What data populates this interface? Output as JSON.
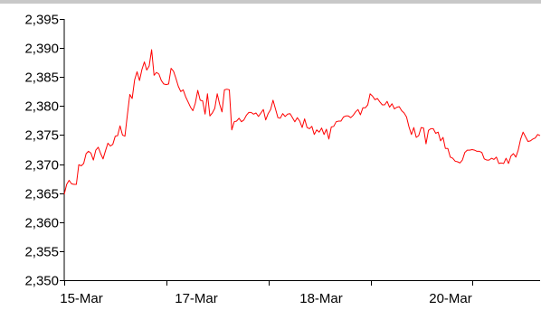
{
  "chart_data": {
    "type": "line",
    "title": "",
    "xlabel": "",
    "ylabel": "",
    "ylim": [
      2350,
      2395
    ],
    "yticks": [
      "2,350",
      "2,355",
      "2,360",
      "2,365",
      "2,370",
      "2,375",
      "2,380",
      "2,385",
      "2,390",
      "2,395"
    ],
    "xticks": [
      "15-Mar",
      "17-Mar",
      "18-Mar",
      "20-Mar"
    ],
    "grid": false,
    "legend": "none",
    "colors": {
      "series": "#ff0000",
      "axis": "#000000",
      "top_rule": "#c8c8c8"
    },
    "series": [
      {
        "values": [
          2364.8,
          2366.5,
          2367.2,
          2366.6,
          2366.5,
          2366.5,
          2369.9,
          2369.7,
          2370.1,
          2371.8,
          2372.2,
          2371.9,
          2370.7,
          2372.4,
          2372.9,
          2371.8,
          2370.9,
          2372.3,
          2373.6,
          2373.1,
          2373.4,
          2374.8,
          2374.9,
          2376.6,
          2375.0,
          2374.8,
          2378.5,
          2382.0,
          2381.3,
          2384.5,
          2385.9,
          2384.4,
          2386.3,
          2387.6,
          2386.2,
          2386.9,
          2389.7,
          2385.3,
          2385.8,
          2385.5,
          2384.4,
          2383.8,
          2383.7,
          2383.8,
          2386.5,
          2386.0,
          2384.8,
          2383.4,
          2382.5,
          2382.8,
          2381.6,
          2380.7,
          2379.8,
          2379.2,
          2380.5,
          2382.7,
          2381.0,
          2380.9,
          2378.6,
          2382.1,
          2378.3,
          2378.8,
          2379.6,
          2382.1,
          2380.3,
          2379.0,
          2382.8,
          2382.9,
          2382.8,
          2375.9,
          2377.3,
          2377.4,
          2377.9,
          2377.3,
          2377.6,
          2378.4,
          2378.9,
          2378.9,
          2378.6,
          2378.8,
          2378.2,
          2378.8,
          2379.4,
          2377.6,
          2378.7,
          2379.4,
          2381.0,
          2379.5,
          2378.0,
          2377.9,
          2378.7,
          2378.2,
          2378.6,
          2378.7,
          2378.0,
          2377.3,
          2378.0,
          2377.4,
          2376.3,
          2377.8,
          2376.3,
          2376.1,
          2376.5,
          2375.1,
          2375.9,
          2375.5,
          2376.2,
          2375.1,
          2376.0,
          2374.3,
          2376.4,
          2376.5,
          2377.3,
          2377.4,
          2377.4,
          2378.1,
          2378.3,
          2378.3,
          2378.0,
          2378.4,
          2379.0,
          2379.4,
          2378.5,
          2379.7,
          2379.7,
          2380.2,
          2382.1,
          2381.7,
          2381.1,
          2381.3,
          2380.7,
          2380.2,
          2380.2,
          2380.8,
          2379.8,
          2380.4,
          2379.5,
          2379.8,
          2379.9,
          2379.2,
          2378.8,
          2378.1,
          2376.4,
          2375.1,
          2376.3,
          2374.6,
          2374.9,
          2376.3,
          2376.2,
          2373.5,
          2375.8,
          2376.1,
          2376.1,
          2375.3,
          2375.5,
          2374.0,
          2374.6,
          2372.7,
          2372.7,
          2371.2,
          2371.0,
          2370.5,
          2370.4,
          2370.2,
          2370.7,
          2372.0,
          2372.4,
          2372.4,
          2372.5,
          2372.4,
          2372.2,
          2372.2,
          2372.0,
          2370.9,
          2370.7,
          2370.7,
          2371.0,
          2370.8,
          2371.2,
          2370.1,
          2370.2,
          2370.1,
          2371.0,
          2370.1,
          2371.4,
          2371.8,
          2371.2,
          2372.4,
          2374.3,
          2375.5,
          2374.7,
          2373.9,
          2374.0,
          2374.3,
          2374.5,
          2375.1,
          2374.9
        ]
      }
    ]
  }
}
